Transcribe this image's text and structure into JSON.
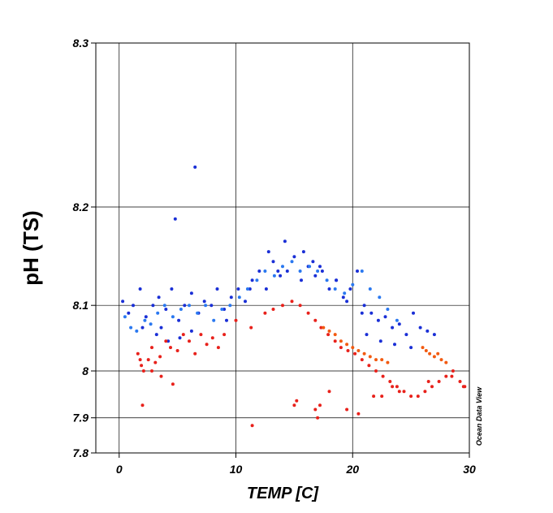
{
  "chart_data": {
    "type": "scatter",
    "title": "",
    "xlabel": "TEMP [C]",
    "ylabel": "pH (TS)",
    "credit": "Ocean Data View",
    "xlim": [
      -2,
      30
    ],
    "ylim": [
      7.8,
      8.3
    ],
    "y_scale": "reciprocal",
    "grid": true,
    "xticks": [
      0,
      10,
      20,
      30
    ],
    "yticks": [
      7.8,
      7.9,
      8,
      8.1,
      8.2,
      8.3
    ],
    "ytick_labels": [
      "7.8",
      "7.9",
      "8",
      "8.1",
      "8.2",
      "8.3"
    ],
    "xtick_labels": [
      "0",
      "10",
      "20",
      "30"
    ],
    "colors": {
      "blue": "#1a2fd6",
      "light_blue": "#2a78f0",
      "red": "#e8211b",
      "orange": "#f25a10"
    },
    "series": [
      {
        "color": "blue",
        "x": [
          0.3,
          0.8,
          1.2,
          1.8,
          2.3,
          2.9,
          3.4,
          4.0,
          4.5,
          5.1,
          5.6,
          6.2,
          6.8,
          7.3,
          7.9,
          8.4,
          9.0,
          9.6,
          10.2,
          10.8,
          11.4,
          12.0,
          12.6,
          13.2,
          13.8,
          14.4,
          15.0,
          15.6,
          16.2,
          16.8,
          17.4,
          18.0,
          18.6,
          19.2,
          19.8,
          20.4,
          21.0,
          21.6,
          22.2,
          22.8,
          23.4,
          24.0,
          24.6,
          25.2,
          25.8,
          26.4,
          27.0,
          3.2,
          4.2,
          5.2,
          6.2,
          4.8,
          3.6,
          12.8,
          14.2,
          15.8,
          17.2,
          18.6,
          21.2,
          22.4,
          23.6,
          25.0,
          6.5,
          2.0,
          9.2,
          11.2,
          13.6,
          16.6,
          19.5,
          20.8
        ],
        "y": [
          8.105,
          8.09,
          8.1,
          8.12,
          8.085,
          8.1,
          8.11,
          8.095,
          8.12,
          8.08,
          8.1,
          8.115,
          8.09,
          8.105,
          8.1,
          8.12,
          8.095,
          8.11,
          8.12,
          8.105,
          8.13,
          8.14,
          8.12,
          8.15,
          8.135,
          8.14,
          8.155,
          8.13,
          8.145,
          8.135,
          8.14,
          8.12,
          8.13,
          8.11,
          8.12,
          8.14,
          8.1,
          8.09,
          8.08,
          8.085,
          8.07,
          8.075,
          8.06,
          8.09,
          8.07,
          8.065,
          8.06,
          8.06,
          8.05,
          8.055,
          8.065,
          8.19,
          8.07,
          8.16,
          8.17,
          8.16,
          8.145,
          8.13,
          8.06,
          8.05,
          8.045,
          8.04,
          8.23,
          8.07,
          8.08,
          8.12,
          8.14,
          8.15,
          8.105,
          8.09
        ]
      },
      {
        "color": "light_blue",
        "x": [
          0.5,
          1.0,
          1.5,
          2.2,
          2.7,
          3.3,
          3.9,
          4.6,
          5.3,
          6.0,
          6.7,
          7.4,
          8.1,
          8.8,
          9.5,
          10.3,
          11.0,
          11.8,
          12.5,
          13.3,
          14.0,
          14.8,
          15.5,
          16.3,
          17.0,
          17.8,
          18.5,
          19.3,
          20.0,
          20.8,
          21.5,
          22.3,
          23.0,
          23.8
        ],
        "y": [
          8.085,
          8.07,
          8.065,
          8.08,
          8.075,
          8.09,
          8.1,
          8.085,
          8.095,
          8.1,
          8.09,
          8.1,
          8.08,
          8.095,
          8.1,
          8.11,
          8.12,
          8.13,
          8.14,
          8.135,
          8.145,
          8.15,
          8.14,
          8.145,
          8.14,
          8.13,
          8.12,
          8.115,
          8.125,
          8.14,
          8.12,
          8.11,
          8.095,
          8.08
        ]
      },
      {
        "color": "red",
        "x": [
          1.6,
          1.9,
          2.1,
          2.5,
          2.8,
          3.1,
          3.5,
          4.0,
          4.4,
          5.0,
          5.5,
          6.0,
          6.5,
          7.0,
          7.5,
          8.0,
          8.5,
          9.0,
          10.0,
          11.3,
          12.5,
          13.2,
          14.0,
          14.8,
          15.5,
          16.2,
          16.8,
          17.3,
          17.9,
          18.5,
          19.0,
          19.6,
          20.2,
          20.8,
          21.4,
          22.0,
          22.6,
          23.2,
          23.8,
          24.4,
          25.0,
          25.6,
          26.2,
          26.8,
          27.4,
          28.0,
          28.6,
          29.2,
          29.6,
          1.8,
          2.0,
          15.0,
          16.8,
          17.0,
          19.5,
          22.5,
          24.0,
          26.5,
          28.5,
          29.5,
          2.8,
          3.6,
          4.6,
          11.4,
          15.2,
          17.2,
          18.0,
          20.5,
          21.8,
          23.4
        ],
        "y": [
          8.03,
          8.01,
          8.0,
          8.02,
          8.04,
          8.015,
          8.025,
          8.05,
          8.04,
          8.035,
          8.06,
          8.05,
          8.03,
          8.06,
          8.045,
          8.055,
          8.04,
          8.06,
          8.08,
          8.07,
          8.09,
          8.095,
          8.1,
          8.105,
          8.1,
          8.09,
          8.08,
          8.07,
          8.06,
          8.05,
          8.04,
          8.035,
          8.03,
          8.02,
          8.01,
          8.0,
          7.99,
          7.98,
          7.97,
          7.96,
          7.95,
          7.95,
          7.96,
          7.97,
          7.98,
          7.99,
          8.0,
          7.98,
          7.97,
          8.02,
          7.93,
          7.93,
          7.92,
          7.9,
          7.92,
          7.95,
          7.96,
          7.98,
          7.99,
          7.97,
          8.0,
          7.99,
          7.975,
          7.88,
          7.94,
          7.93,
          7.96,
          7.91,
          7.95,
          7.97
        ]
      },
      {
        "color": "orange",
        "x": [
          17.5,
          18.0,
          18.5,
          19.0,
          19.5,
          20.0,
          20.5,
          21.0,
          21.5,
          22.0,
          22.5,
          23.0,
          26.0,
          26.3,
          26.6,
          27.0,
          27.3,
          27.6,
          28.0
        ],
        "y": [
          8.07,
          8.065,
          8.06,
          8.05,
          8.045,
          8.04,
          8.035,
          8.03,
          8.025,
          8.02,
          8.02,
          8.015,
          8.04,
          8.035,
          8.03,
          8.025,
          8.03,
          8.02,
          8.015
        ]
      }
    ]
  }
}
